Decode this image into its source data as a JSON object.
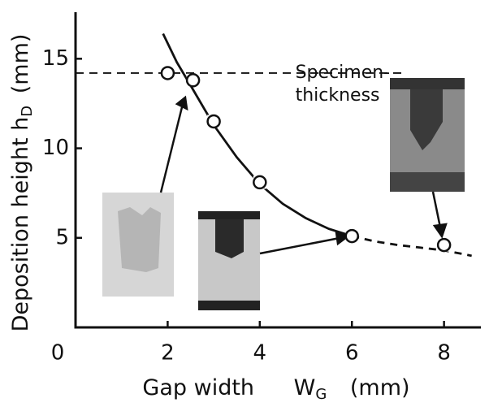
{
  "chart_data": {
    "type": "scatter",
    "xlim": [
      0,
      8.8
    ],
    "ylim": [
      0,
      17.6
    ],
    "xticks": [
      0,
      2,
      4,
      6,
      8
    ],
    "yticks": [
      5,
      10,
      15
    ],
    "x_label": {
      "text": "Gap width",
      "symbol": "W",
      "subscript": "G",
      "unit": "(mm)"
    },
    "y_label": {
      "text": "Deposition height",
      "symbol": "h",
      "subscript": "D",
      "unit": "(mm)"
    },
    "color": "#111111",
    "series": [
      {
        "x": [
          2,
          2.55,
          3,
          4,
          6,
          8
        ],
        "values": [
          14.2,
          13.8,
          11.5,
          8.1,
          5.1,
          4.6
        ],
        "marker": "circle"
      },
      {
        "x": [
          1.9,
          2.2,
          2.5,
          3,
          3.5,
          4,
          4.5,
          5,
          5.5,
          6
        ],
        "values": [
          16.4,
          14.8,
          13.5,
          11.3,
          9.5,
          8.0,
          6.9,
          6.1,
          5.5,
          5.1
        ],
        "marker": "line",
        "dashed": false
      },
      {
        "x": [
          6,
          6.5,
          7,
          7.5,
          8,
          8.6
        ],
        "values": [
          5.1,
          4.8,
          4.6,
          4.45,
          4.3,
          4.0
        ],
        "marker": "line",
        "dashed": true
      }
    ],
    "reference_line": {
      "y": 14.2,
      "x": [
        0,
        7.1
      ],
      "label": [
        "Specimen-",
        "thickness"
      ]
    }
  }
}
